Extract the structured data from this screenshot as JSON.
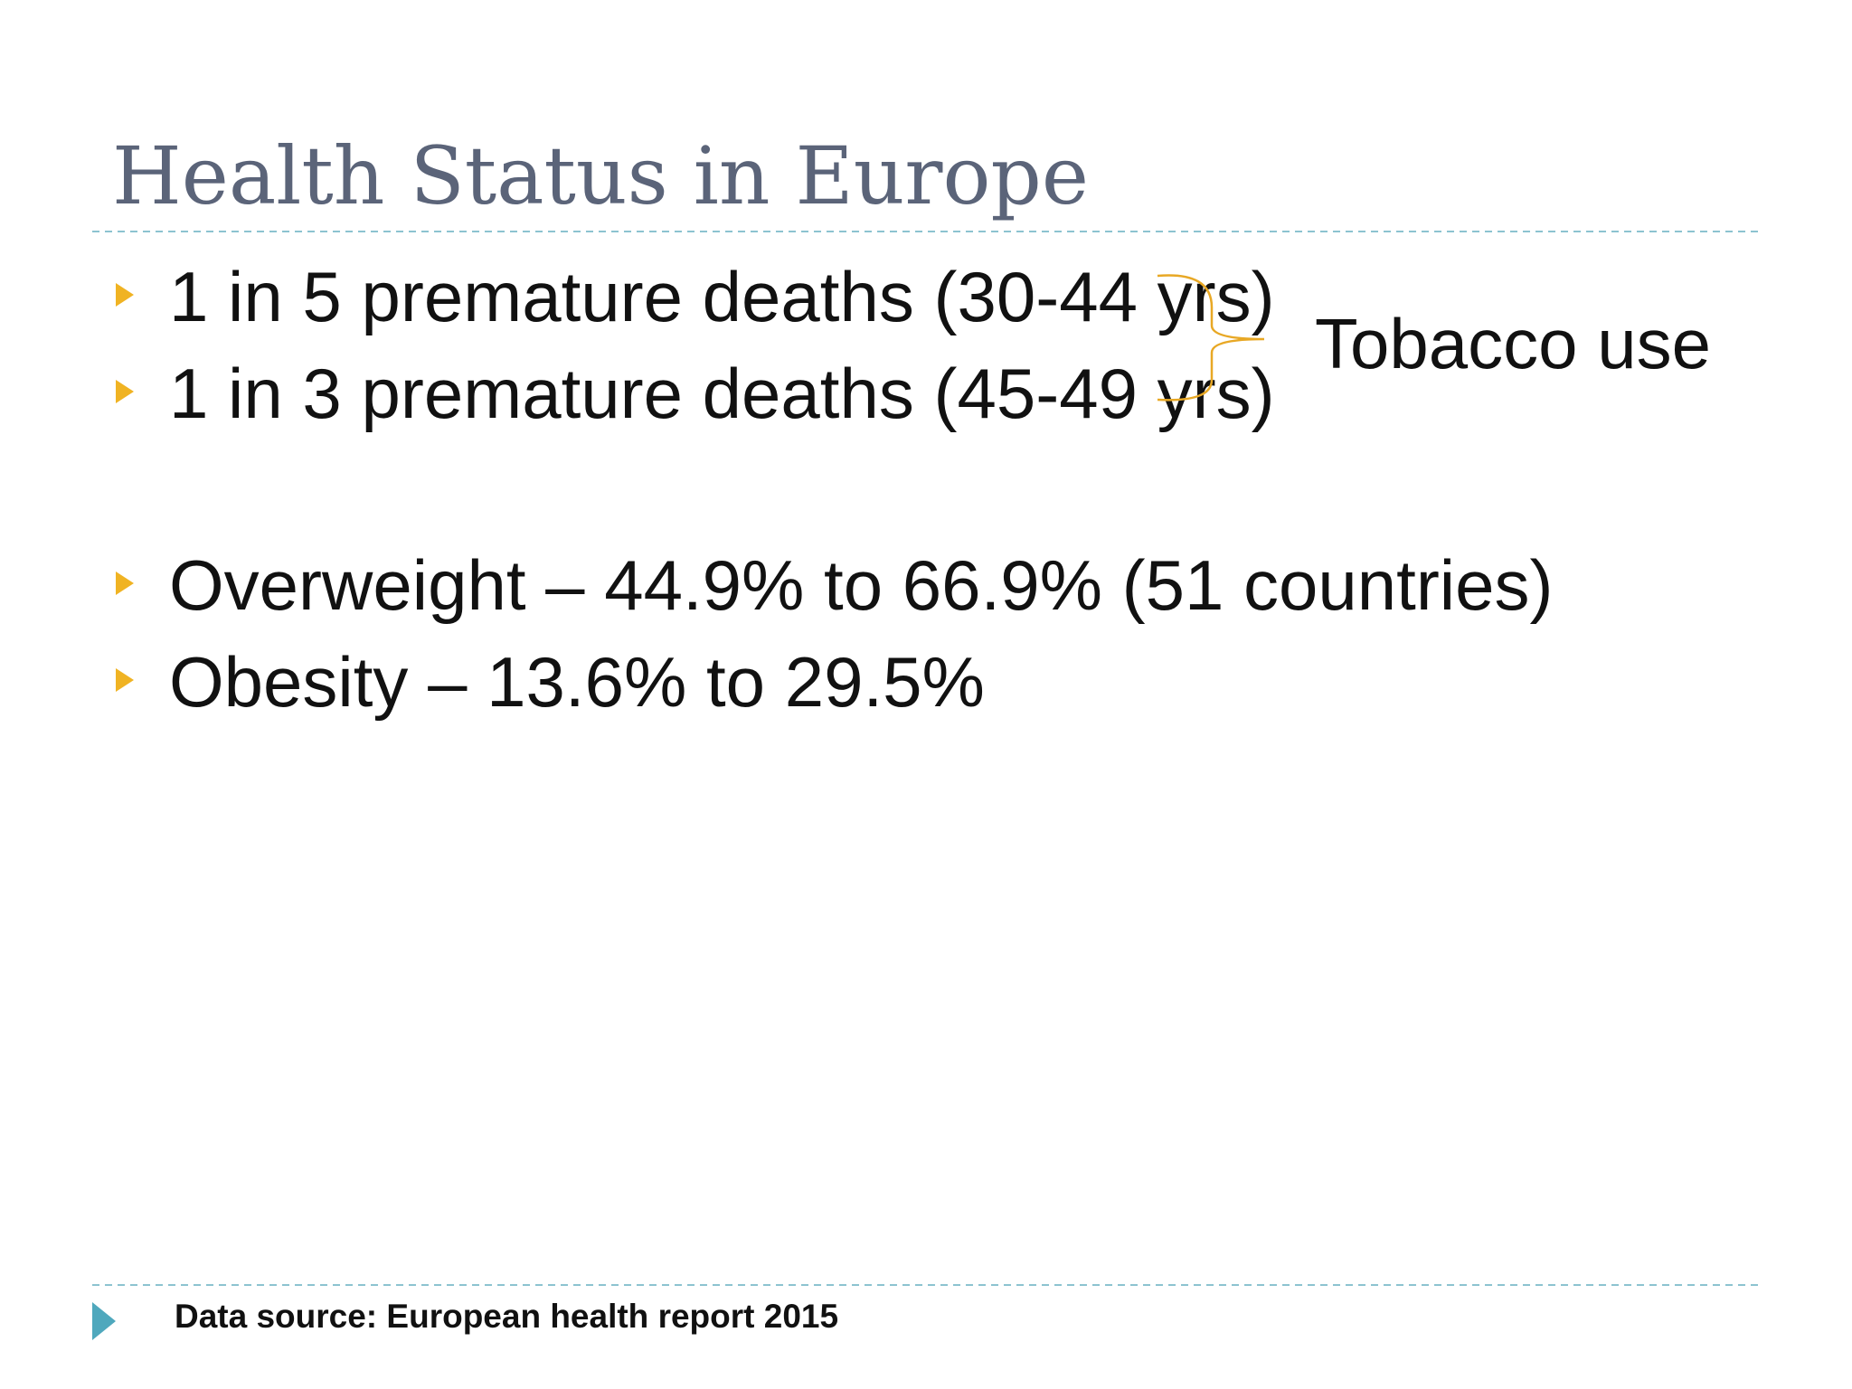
{
  "header": {
    "title": "Health Status in Europe"
  },
  "bullets": [
    "1 in 5 premature deaths (30-44 yrs)",
    "1 in 3 premature deaths (45-49 yrs)",
    "Overweight – 44.9% to 66.9% (51 countries)",
    "Obesity – 13.6% to 29.5%"
  ],
  "annotation": "Tobacco use",
  "footer": "Data source: European health report 2015"
}
